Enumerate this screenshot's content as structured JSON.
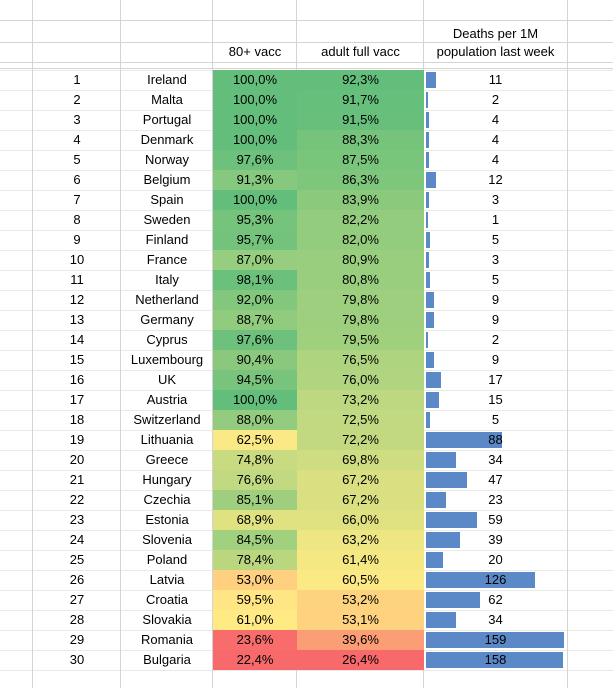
{
  "header": {
    "col_80": "80+ vacc",
    "col_adult": "adult full vacc",
    "col_deaths_line1": "Deaths per 1M",
    "col_deaths_line2": "population last week"
  },
  "colors": {
    "bar": "#5b88c6",
    "gridline": "#d4d4d4",
    "scale_high": "#63be7b",
    "scale_mid": "#ffeb84",
    "scale_low": "#f8696b"
  },
  "rows": [
    {
      "rank": "1",
      "country": "Ireland",
      "vacc80": "100,0%",
      "adult": "92,3%",
      "deaths": "11"
    },
    {
      "rank": "2",
      "country": "Malta",
      "vacc80": "100,0%",
      "adult": "91,7%",
      "deaths": "2"
    },
    {
      "rank": "3",
      "country": "Portugal",
      "vacc80": "100,0%",
      "adult": "91,5%",
      "deaths": "4"
    },
    {
      "rank": "4",
      "country": "Denmark",
      "vacc80": "100,0%",
      "adult": "88,3%",
      "deaths": "4"
    },
    {
      "rank": "5",
      "country": "Norway",
      "vacc80": "97,6%",
      "adult": "87,5%",
      "deaths": "4"
    },
    {
      "rank": "6",
      "country": "Belgium",
      "vacc80": "91,3%",
      "adult": "86,3%",
      "deaths": "12"
    },
    {
      "rank": "7",
      "country": "Spain",
      "vacc80": "100,0%",
      "adult": "83,9%",
      "deaths": "3"
    },
    {
      "rank": "8",
      "country": "Sweden",
      "vacc80": "95,3%",
      "adult": "82,2%",
      "deaths": "1"
    },
    {
      "rank": "9",
      "country": "Finland",
      "vacc80": "95,7%",
      "adult": "82,0%",
      "deaths": "5"
    },
    {
      "rank": "10",
      "country": "France",
      "vacc80": "87,0%",
      "adult": "80,9%",
      "deaths": "3"
    },
    {
      "rank": "11",
      "country": "Italy",
      "vacc80": "98,1%",
      "adult": "80,8%",
      "deaths": "5"
    },
    {
      "rank": "12",
      "country": "Netherland",
      "vacc80": "92,0%",
      "adult": "79,8%",
      "deaths": "9"
    },
    {
      "rank": "13",
      "country": "Germany",
      "vacc80": "88,7%",
      "adult": "79,8%",
      "deaths": "9"
    },
    {
      "rank": "14",
      "country": "Cyprus",
      "vacc80": "97,6%",
      "adult": "79,5%",
      "deaths": "2"
    },
    {
      "rank": "15",
      "country": "Luxembourg",
      "vacc80": "90,4%",
      "adult": "76,5%",
      "deaths": "9"
    },
    {
      "rank": "16",
      "country": "UK",
      "vacc80": "94,5%",
      "adult": "76,0%",
      "deaths": "17"
    },
    {
      "rank": "17",
      "country": "Austria",
      "vacc80": "100,0%",
      "adult": "73,2%",
      "deaths": "15"
    },
    {
      "rank": "18",
      "country": "Switzerland",
      "vacc80": "88,0%",
      "adult": "72,5%",
      "deaths": "5"
    },
    {
      "rank": "19",
      "country": "Lithuania",
      "vacc80": "62,5%",
      "adult": "72,2%",
      "deaths": "88"
    },
    {
      "rank": "20",
      "country": "Greece",
      "vacc80": "74,8%",
      "adult": "69,8%",
      "deaths": "34"
    },
    {
      "rank": "21",
      "country": "Hungary",
      "vacc80": "76,6%",
      "adult": "67,2%",
      "deaths": "47"
    },
    {
      "rank": "22",
      "country": "Czechia",
      "vacc80": "85,1%",
      "adult": "67,2%",
      "deaths": "23"
    },
    {
      "rank": "23",
      "country": "Estonia",
      "vacc80": "68,9%",
      "adult": "66,0%",
      "deaths": "59"
    },
    {
      "rank": "24",
      "country": "Slovenia",
      "vacc80": "84,5%",
      "adult": "63,2%",
      "deaths": "39"
    },
    {
      "rank": "25",
      "country": "Poland",
      "vacc80": "78,4%",
      "adult": "61,4%",
      "deaths": "20"
    },
    {
      "rank": "26",
      "country": "Latvia",
      "vacc80": "53,0%",
      "adult": "60,5%",
      "deaths": "126"
    },
    {
      "rank": "27",
      "country": "Croatia",
      "vacc80": "59,5%",
      "adult": "53,2%",
      "deaths": "62"
    },
    {
      "rank": "28",
      "country": "Slovakia",
      "vacc80": "61,0%",
      "adult": "53,1%",
      "deaths": "34"
    },
    {
      "rank": "29",
      "country": "Romania",
      "vacc80": "23,6%",
      "adult": "39,6%",
      "deaths": "159"
    },
    {
      "rank": "30",
      "country": "Bulgaria",
      "vacc80": "22,4%",
      "adult": "26,4%",
      "deaths": "158"
    }
  ]
}
